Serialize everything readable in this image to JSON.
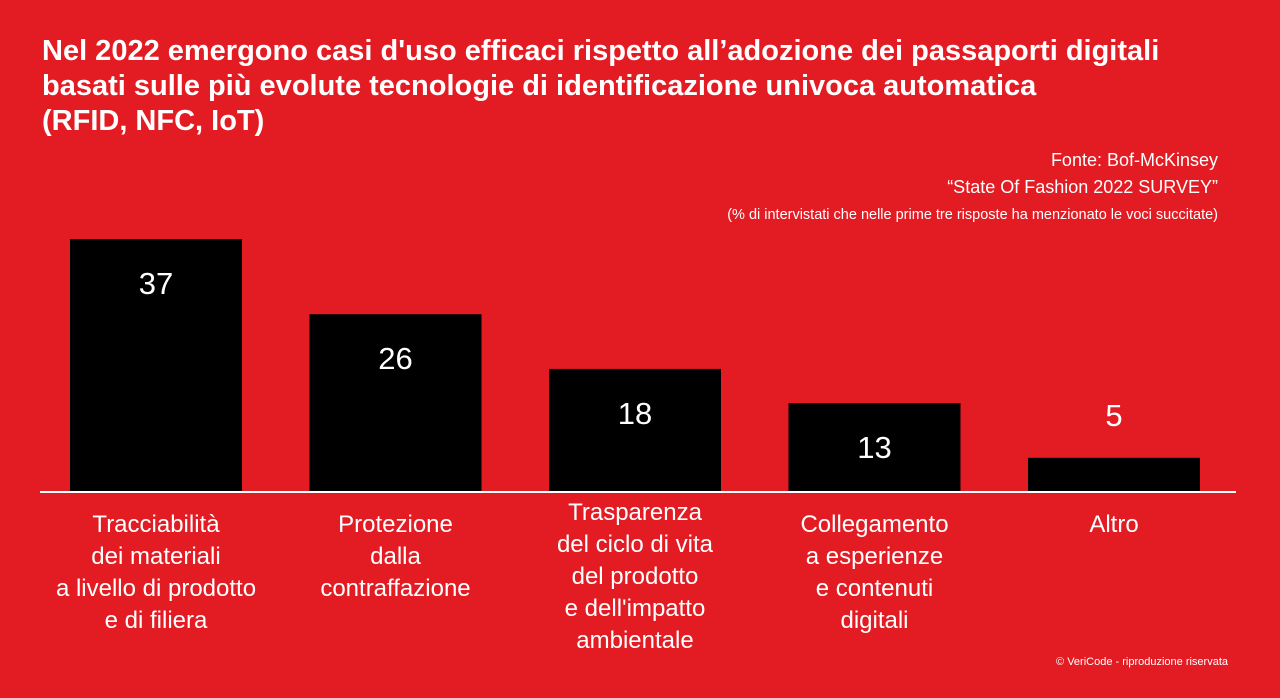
{
  "title_lines": [
    "Nel 2022 emergono casi d'uso efficaci rispetto all’adozione dei passaporti digitali",
    "basati sulle più evolute tecnologie di identificazione univoca automatica",
    "(RFID, NFC, IoT)"
  ],
  "source": {
    "line1": "Fonte: Bof-McKinsey",
    "line2": "“State Of Fashion 2022 SURVEY”",
    "note": "(% di intervistati che nelle prime tre risposte ha menzionato le voci succitate)"
  },
  "credit": "© VeriCode - riproduzione riservata",
  "colors": {
    "background": "#e31b23",
    "bar": "#000000",
    "text": "#ffffff"
  },
  "chart_data": {
    "type": "bar",
    "categories": [
      [
        "Tracciabilità",
        "dei materiali",
        "a livello di prodotto",
        "e di filiera"
      ],
      [
        "Protezione",
        "dalla",
        "contraffazione"
      ],
      [
        "Trasparenza",
        "del ciclo di vita",
        "del prodotto",
        "e dell'impatto",
        "ambientale"
      ],
      [
        "Collegamento",
        "a esperienze",
        "e contenuti",
        "digitali"
      ],
      [
        "Altro"
      ]
    ],
    "values": [
      37,
      26,
      18,
      13,
      5
    ],
    "ylim": [
      0,
      37
    ]
  }
}
